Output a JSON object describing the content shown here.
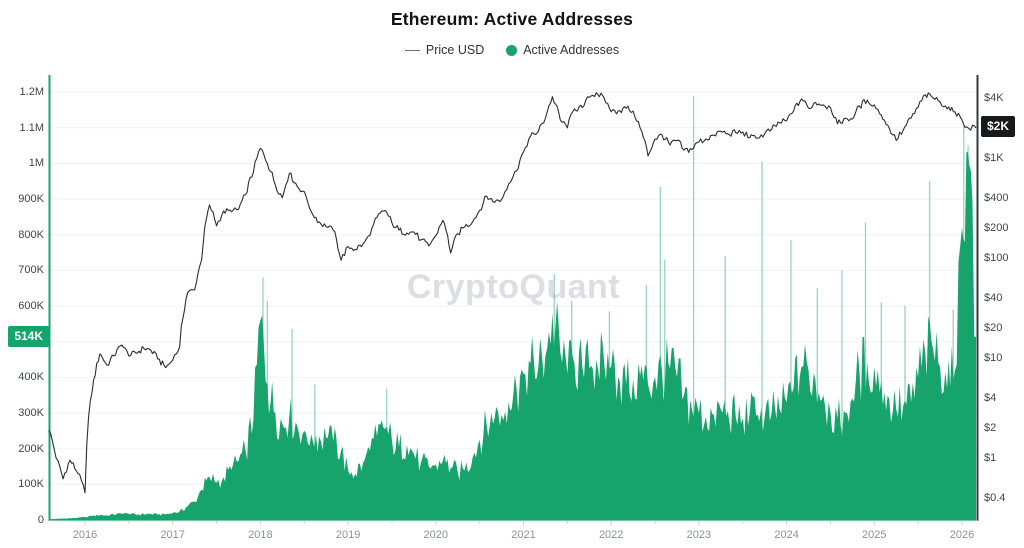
{
  "header": {
    "title": "Ethereum: Active Addresses"
  },
  "legend": [
    {
      "label": "Price USD",
      "swatch": "line",
      "color": "#6d7075"
    },
    {
      "label": "Active Addresses",
      "swatch": "dot",
      "color": "#17a36c"
    }
  ],
  "watermark": "CryptoQuant",
  "colors": {
    "accent_green": "#17a36c",
    "price_line": "#2a2d31",
    "spike_green": "rgba(23,163,108,0.45)",
    "grid": "#f0f1f4",
    "axis_line_right": "#35383c",
    "axis_bottom": "#e2e3e7",
    "tick_mark": "#c9ccd2",
    "axis_label": "#3f454d",
    "year_label": "#8d9299",
    "badge_left_bg": "#17a36c",
    "badge_right_bg": "#17191c"
  },
  "chart_data": {
    "type": "combo",
    "title": "Ethereum: Active Addresses",
    "legend_position": "top-center",
    "grid": "horizontal-only",
    "x_axis": {
      "unit": "decimal_year",
      "range": [
        2015.58,
        2026.18
      ],
      "ticks": [
        2016,
        2017,
        2018,
        2019,
        2020,
        2021,
        2022,
        2023,
        2024,
        2025,
        2026
      ]
    },
    "left_axis": {
      "series": "Active Addresses",
      "scale": "linear",
      "range": [
        0,
        1200000
      ],
      "ticks": [
        {
          "label": "0",
          "value": 0
        },
        {
          "label": "100K",
          "value": 100000
        },
        {
          "label": "200K",
          "value": 200000
        },
        {
          "label": "300K",
          "value": 300000
        },
        {
          "label": "400K",
          "value": 400000
        },
        {
          "label": "600K",
          "value": 600000
        },
        {
          "label": "700K",
          "value": 700000
        },
        {
          "label": "800K",
          "value": 800000
        },
        {
          "label": "900K",
          "value": 900000
        },
        {
          "label": "1M",
          "value": 1000000
        },
        {
          "label": "1.1M",
          "value": 1100000
        },
        {
          "label": "1.2M",
          "value": 1200000
        }
      ],
      "latest_value": 514000,
      "latest_badge": "514K"
    },
    "right_axis": {
      "series": "Price USD",
      "scale": "log",
      "ticks": [
        {
          "label": "$0.4",
          "value": 0.4
        },
        {
          "label": "$1",
          "value": 1
        },
        {
          "label": "$2",
          "value": 2
        },
        {
          "label": "$4",
          "value": 4
        },
        {
          "label": "$10",
          "value": 10
        },
        {
          "label": "$20",
          "value": 20
        },
        {
          "label": "$40",
          "value": 40
        },
        {
          "label": "$100",
          "value": 100
        },
        {
          "label": "$200",
          "value": 200
        },
        {
          "label": "$400",
          "value": 400
        },
        {
          "label": "$1K",
          "value": 1000
        },
        {
          "label": "$4K",
          "value": 4000
        }
      ],
      "latest_value": 2000,
      "latest_badge": "$2K"
    },
    "x_monthly": [
      2015.58,
      2015.67,
      2015.75,
      2015.83,
      2015.92,
      2016.0,
      2016.08,
      2016.17,
      2016.25,
      2016.33,
      2016.42,
      2016.5,
      2016.58,
      2016.67,
      2016.75,
      2016.83,
      2016.92,
      2017.0,
      2017.08,
      2017.17,
      2017.25,
      2017.33,
      2017.42,
      2017.5,
      2017.58,
      2017.67,
      2017.75,
      2017.83,
      2017.92,
      2018.0,
      2018.08,
      2018.17,
      2018.25,
      2018.33,
      2018.42,
      2018.5,
      2018.58,
      2018.67,
      2018.75,
      2018.83,
      2018.92,
      2019.0,
      2019.08,
      2019.17,
      2019.25,
      2019.33,
      2019.42,
      2019.5,
      2019.58,
      2019.67,
      2019.75,
      2019.83,
      2019.92,
      2020.0,
      2020.08,
      2020.17,
      2020.25,
      2020.33,
      2020.42,
      2020.5,
      2020.58,
      2020.67,
      2020.75,
      2020.83,
      2020.92,
      2021.0,
      2021.08,
      2021.17,
      2021.25,
      2021.33,
      2021.42,
      2021.5,
      2021.58,
      2021.67,
      2021.75,
      2021.83,
      2021.92,
      2022.0,
      2022.08,
      2022.17,
      2022.25,
      2022.33,
      2022.42,
      2022.5,
      2022.58,
      2022.67,
      2022.75,
      2022.83,
      2022.92,
      2023.0,
      2023.08,
      2023.17,
      2023.25,
      2023.33,
      2023.42,
      2023.5,
      2023.58,
      2023.67,
      2023.75,
      2023.83,
      2023.92,
      2024.0,
      2024.08,
      2024.17,
      2024.25,
      2024.33,
      2024.42,
      2024.5,
      2024.58,
      2024.67,
      2024.75,
      2024.83,
      2024.92,
      2025.0,
      2025.08,
      2025.17,
      2025.25,
      2025.33,
      2025.42,
      2025.5,
      2025.58,
      2025.67,
      2025.75,
      2025.83,
      2025.92,
      2026.0,
      2026.05,
      2026.1,
      2026.14,
      2026.16
    ],
    "series": [
      {
        "name": "Price USD",
        "type": "line",
        "axis": "right",
        "unit": "USD",
        "color": "#2a2d31",
        "values": [
          1.9,
          1.0,
          0.62,
          0.95,
          0.7,
          0.45,
          4.5,
          11,
          8.5,
          10.5,
          13.5,
          10.5,
          11.2,
          12.5,
          12.0,
          9.8,
          8.0,
          9.5,
          13,
          45,
          48,
          95,
          340,
          210,
          295,
          290,
          305,
          430,
          720,
          1250,
          880,
          540,
          400,
          700,
          520,
          460,
          290,
          230,
          205,
          190,
          95,
          130,
          122,
          138,
          168,
          255,
          300,
          225,
          190,
          178,
          182,
          152,
          132,
          168,
          238,
          112,
          175,
          205,
          230,
          300,
          415,
          360,
          385,
          550,
          740,
          1150,
          1650,
          1850,
          2500,
          4100,
          2400,
          2000,
          3100,
          3200,
          4050,
          4500,
          3950,
          2900,
          2950,
          3150,
          2950,
          2000,
          1050,
          1550,
          1700,
          1350,
          1500,
          1200,
          1220,
          1450,
          1550,
          1700,
          1850,
          1750,
          1800,
          1820,
          1600,
          1580,
          1750,
          1950,
          2250,
          2350,
          2950,
          3900,
          3150,
          3600,
          3400,
          3200,
          2200,
          2500,
          2450,
          3300,
          3800,
          3400,
          2700,
          2000,
          1500,
          1900,
          2500,
          3200,
          4300,
          4000,
          3650,
          3100,
          2900,
          2400,
          2050,
          1900,
          2100,
          2000
        ]
      },
      {
        "name": "Active Addresses",
        "type": "bars",
        "axis": "left",
        "unit": "addresses_thousands",
        "color": "#17a36c",
        "values": [
          2,
          3,
          4,
          5,
          6,
          8,
          11,
          14,
          13,
          15,
          18,
          17,
          15,
          16,
          17,
          15,
          16,
          19,
          24,
          38,
          52,
          85,
          120,
          105,
          120,
          140,
          165,
          195,
          280,
          560,
          380,
          300,
          270,
          290,
          265,
          250,
          240,
          235,
          230,
          220,
          195,
          140,
          130,
          160,
          195,
          235,
          255,
          225,
          205,
          210,
          185,
          160,
          150,
          155,
          165,
          145,
          135,
          140,
          175,
          225,
          265,
          285,
          295,
          330,
          370,
          410,
          440,
          430,
          460,
          580,
          470,
          410,
          440,
          430,
          425,
          450,
          440,
          430,
          400,
          380,
          395,
          405,
          380,
          400,
          415,
          425,
          400,
          350,
          310,
          300,
          290,
          295,
          310,
          305,
          290,
          285,
          300,
          295,
          290,
          300,
          310,
          330,
          370,
          430,
          420,
          390,
          350,
          300,
          285,
          300,
          340,
          420,
          440,
          430,
          390,
          340,
          310,
          320,
          330,
          400,
          470,
          480,
          430,
          370,
          420,
          820,
          1030,
          980,
          514,
          514
        ],
        "spikes": [
          [
            2018.03,
            680
          ],
          [
            2018.08,
            615
          ],
          [
            2018.36,
            535
          ],
          [
            2018.62,
            380
          ],
          [
            2019.44,
            368
          ],
          [
            2021.35,
            690
          ],
          [
            2021.55,
            615
          ],
          [
            2021.98,
            585
          ],
          [
            2022.4,
            660
          ],
          [
            2022.56,
            935
          ],
          [
            2022.61,
            730
          ],
          [
            2022.94,
            1190
          ],
          [
            2023.3,
            740
          ],
          [
            2023.72,
            1005
          ],
          [
            2024.05,
            785
          ],
          [
            2024.35,
            650
          ],
          [
            2024.63,
            700
          ],
          [
            2024.9,
            835
          ],
          [
            2025.08,
            610
          ],
          [
            2025.35,
            600
          ],
          [
            2025.63,
            950
          ],
          [
            2025.9,
            590
          ],
          [
            2026.02,
            1110
          ],
          [
            2026.07,
            1050
          ]
        ]
      }
    ]
  }
}
